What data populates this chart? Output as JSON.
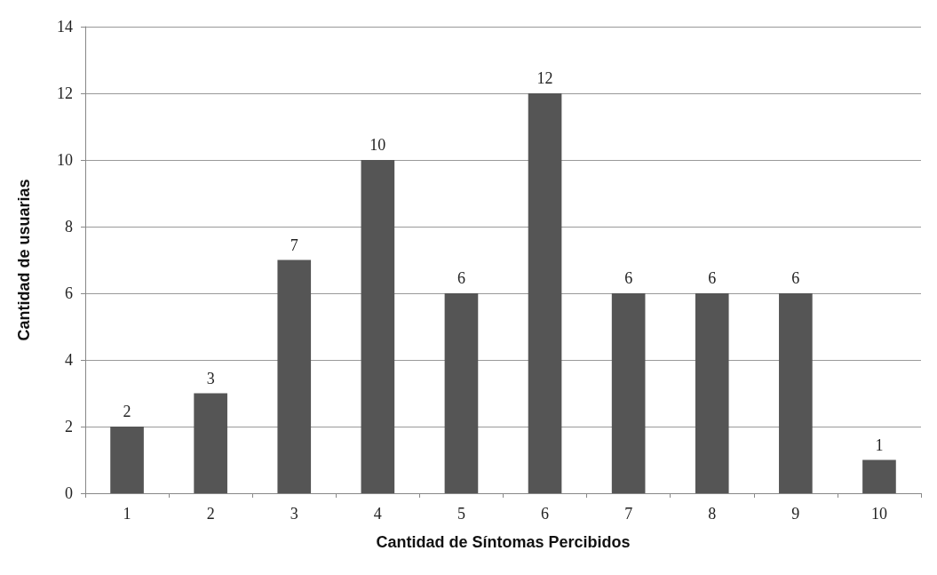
{
  "chart_data": {
    "type": "bar",
    "xlabel": "Cantidad de Síntomas Percibidos",
    "ylabel": "Cantidad de usuarias",
    "categories": [
      "1",
      "2",
      "3",
      "4",
      "5",
      "6",
      "7",
      "8",
      "9",
      "10"
    ],
    "values": [
      2,
      3,
      7,
      10,
      6,
      12,
      6,
      6,
      6,
      1
    ],
    "color": "#555555",
    "ylim": [
      0,
      14
    ],
    "yticks": [
      0,
      2,
      4,
      6,
      8,
      10,
      12,
      14
    ],
    "grid": "y",
    "data_labels": true
  }
}
